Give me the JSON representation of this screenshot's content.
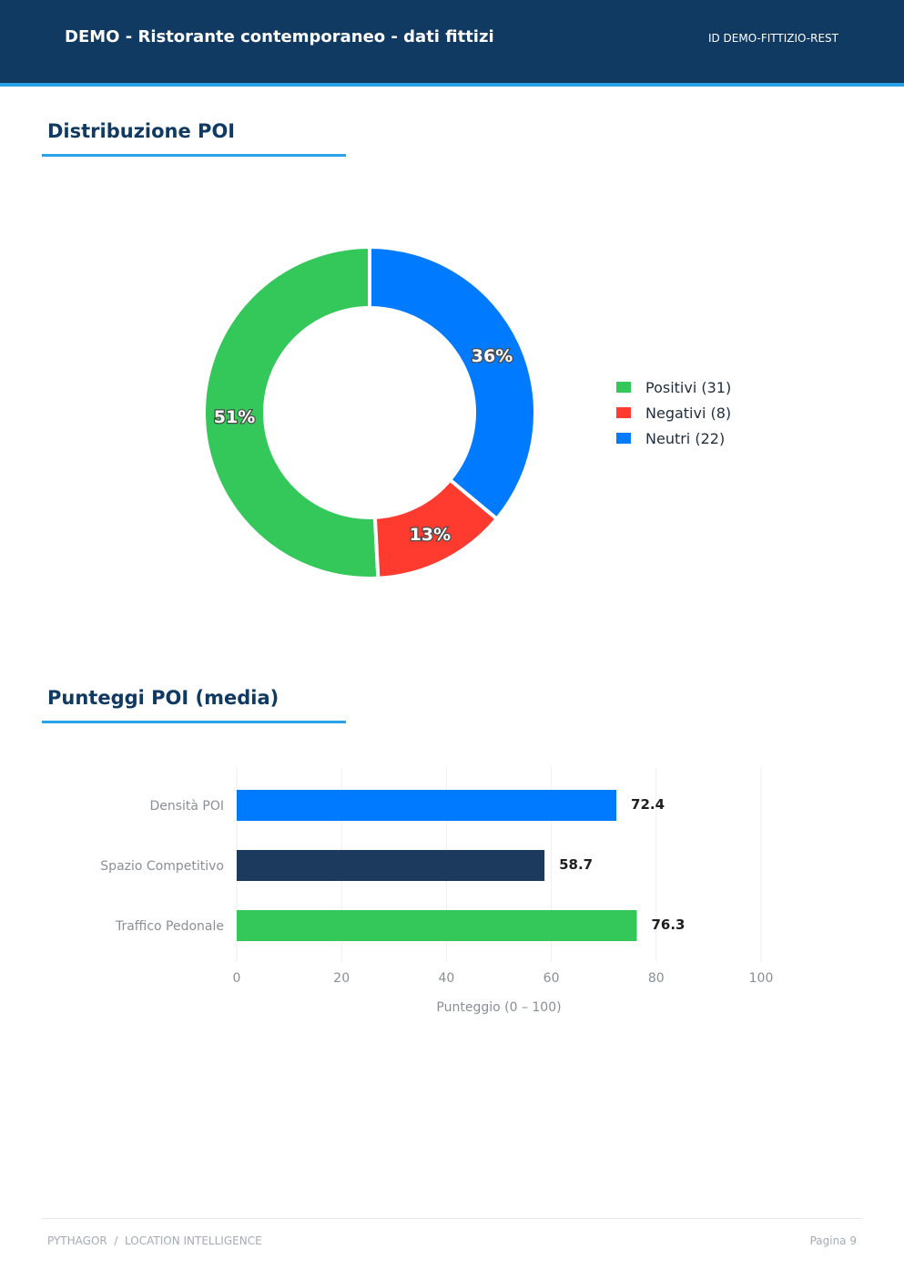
{
  "header": {
    "title": "DEMO - Ristorante contemporaneo - dati fittizi",
    "id_label": "ID DEMO-FITTIZIO-REST"
  },
  "sections": {
    "distribution_title": "Distribuzione POI",
    "scores_title": "Punteggi POI (media)"
  },
  "chart_data": [
    {
      "type": "pie",
      "variant": "donut",
      "title": "",
      "slices": [
        {
          "label": "Positivi (31)",
          "value": 31,
          "percent_label": "51%",
          "color": "#34c759"
        },
        {
          "label": "Negativi (8)",
          "value": 8,
          "percent_label": "13%",
          "color": "#ff3b30"
        },
        {
          "label": "Neutri (22)",
          "value": 22,
          "percent_label": "36%",
          "color": "#007aff"
        }
      ],
      "legend_placement": "right"
    },
    {
      "type": "bar",
      "orientation": "horizontal",
      "title": "",
      "categories": [
        "Densità POI",
        "Spazio Competitivo",
        "Traffico Pedonale"
      ],
      "values": [
        72.4,
        58.7,
        76.3
      ],
      "value_labels": [
        "72.4",
        "58.7",
        "76.3"
      ],
      "colors": [
        "#007aff",
        "#1c3a5e",
        "#34c759"
      ],
      "xlabel": "Punteggio (0 – 100)",
      "ylabel": "",
      "xlim": [
        0,
        100
      ],
      "xticks": [
        "0",
        "20",
        "40",
        "60",
        "80",
        "100"
      ],
      "grid": true
    }
  ],
  "footer": {
    "left": "PYTHAGOR  /  LOCATION INTELLIGENCE",
    "right": "Pagina 9"
  }
}
